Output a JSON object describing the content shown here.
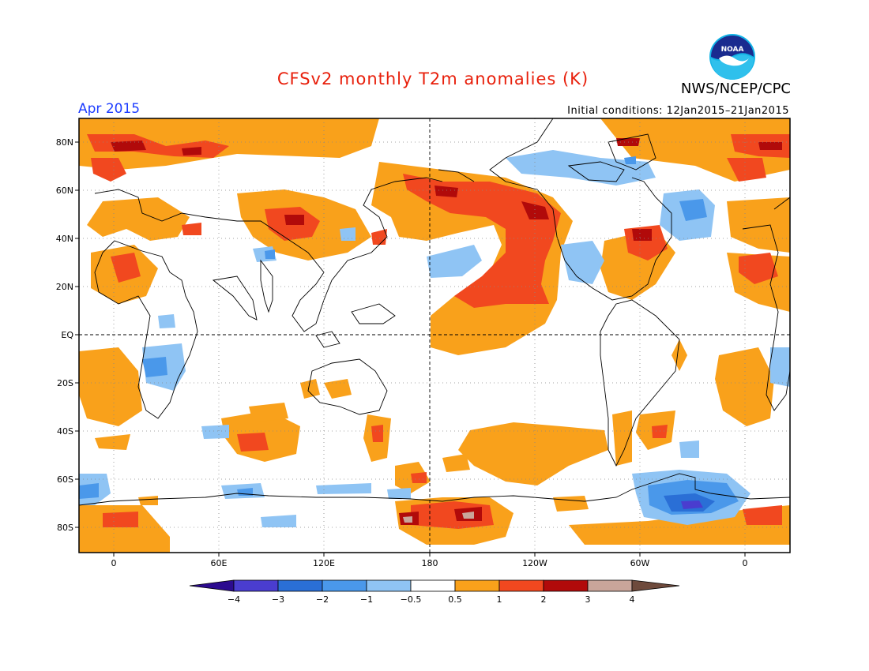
{
  "title": "CFSv2 monthly T2m anomalies (K)",
  "agency": "NWS/NCEP/CPC",
  "logo_text": "NOAA",
  "month": "Apr 2015",
  "initial_conditions": "Initial conditions: 12Jan2015–21Jan2015",
  "lat_labels": [
    "80N",
    "60N",
    "40N",
    "20N",
    "EQ",
    "20S",
    "40S",
    "60S",
    "80S"
  ],
  "lon_labels": [
    "0",
    "60E",
    "120E",
    "180",
    "120W",
    "60W",
    "0"
  ],
  "colorbar": {
    "labels": [
      "−4",
      "−3",
      "−2",
      "−1",
      "−0.5",
      "0.5",
      "1",
      "2",
      "3",
      "4"
    ],
    "colors": [
      "#2c0b8f",
      "#4a3dcf",
      "#2a6fd6",
      "#4a98ea",
      "#8fc4f4",
      "#ffffff",
      "#f9a11b",
      "#f1481f",
      "#b10a0a",
      "#c9a59a",
      "#6e4a3c"
    ]
  },
  "anomaly_colors": {
    "warm_1": "#f9a11b",
    "warm_2": "#f1481f",
    "warm_3": "#b10a0a",
    "warm_4": "#c9a59a",
    "cool_1": "#8fc4f4",
    "cool_2": "#4a98ea",
    "cool_3": "#2a6fd6",
    "cool_4": "#4a3dcf"
  }
}
